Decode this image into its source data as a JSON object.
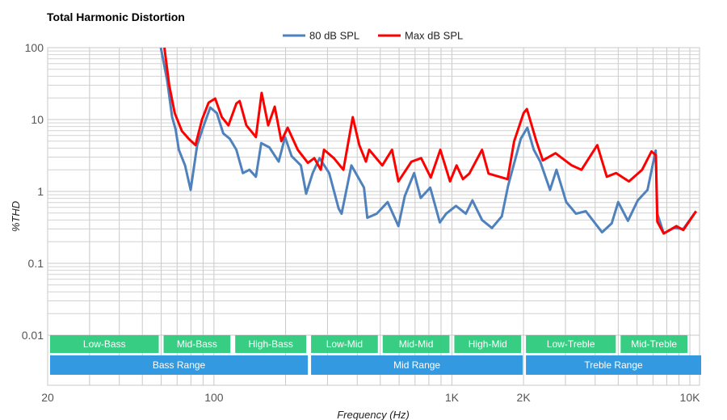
{
  "chart_data": {
    "type": "line",
    "title": "Total Harmonic Distortion",
    "xlabel": "Frequency (Hz)",
    "ylabel": "%THD",
    "xscale": "log",
    "yscale": "log",
    "xlim": [
      20,
      11000
    ],
    "ylim": [
      0.002,
      100
    ],
    "grid": true,
    "legend": "top-center",
    "x_ticks": [
      {
        "value": 20,
        "label": "20"
      },
      {
        "value": 100,
        "label": "100"
      },
      {
        "value": 1000,
        "label": "1K"
      },
      {
        "value": 2000,
        "label": "2K"
      },
      {
        "value": 10000,
        "label": "10K"
      }
    ],
    "y_ticks": [
      {
        "value": 100,
        "label": "100"
      },
      {
        "value": 10,
        "label": "10"
      },
      {
        "value": 1,
        "label": "1"
      },
      {
        "value": 0.1,
        "label": "0.1"
      },
      {
        "value": 0.01,
        "label": "0.01"
      }
    ],
    "series": [
      {
        "name": "80 dB SPL",
        "color": "#4f81bd",
        "points": [
          [
            59.8,
            100
          ],
          [
            63.6,
            34.6
          ],
          [
            66.7,
            10.8
          ],
          [
            69,
            7.3
          ],
          [
            71.2,
            3.8
          ],
          [
            75.6,
            2.3
          ],
          [
            79.8,
            1.05
          ],
          [
            85,
            4.4
          ],
          [
            90.6,
            8.3
          ],
          [
            96.5,
            14.7
          ],
          [
            102.8,
            12.3
          ],
          [
            109.4,
            6.4
          ],
          [
            116.6,
            5.4
          ],
          [
            124.2,
            3.8
          ],
          [
            132.3,
            1.8
          ],
          [
            141,
            2.0
          ],
          [
            150,
            1.6
          ],
          [
            158,
            4.7
          ],
          [
            171,
            4.1
          ],
          [
            187,
            2.6
          ],
          [
            199,
            5.7
          ],
          [
            212,
            3.1
          ],
          [
            232,
            2.3
          ],
          [
            244,
            0.93
          ],
          [
            260,
            1.8
          ],
          [
            278,
            2.9
          ],
          [
            305,
            1.8
          ],
          [
            334,
            0.58
          ],
          [
            344,
            0.49
          ],
          [
            378,
            2.3
          ],
          [
            427,
            1.13
          ],
          [
            441,
            0.43
          ],
          [
            483,
            0.49
          ],
          [
            537,
            0.71
          ],
          [
            596,
            0.33
          ],
          [
            634,
            0.86
          ],
          [
            694,
            1.8
          ],
          [
            739,
            0.81
          ],
          [
            811,
            1.13
          ],
          [
            890,
            0.37
          ],
          [
            946,
            0.49
          ],
          [
            1040,
            0.63
          ],
          [
            1144,
            0.49
          ],
          [
            1219,
            0.75
          ],
          [
            1339,
            0.4
          ],
          [
            1473,
            0.31
          ],
          [
            1620,
            0.45
          ],
          [
            1723,
            1.2
          ],
          [
            1948,
            5.4
          ],
          [
            2074,
            7.7
          ],
          [
            2208,
            3.8
          ],
          [
            2351,
            2.6
          ],
          [
            2584,
            1.05
          ],
          [
            2752,
            2.0
          ],
          [
            3024,
            0.71
          ],
          [
            3324,
            0.49
          ],
          [
            3655,
            0.53
          ],
          [
            4143,
            0.31
          ],
          [
            4274,
            0.27
          ],
          [
            4697,
            0.36
          ],
          [
            5000,
            0.71
          ],
          [
            5493,
            0.39
          ],
          [
            6038,
            0.75
          ],
          [
            6638,
            1.05
          ],
          [
            7186,
            3.7
          ],
          [
            7300,
            0.49
          ],
          [
            7770,
            0.26
          ],
          [
            8540,
            0.31
          ],
          [
            9385,
            0.3
          ],
          [
            10620,
            0.53
          ]
        ]
      },
      {
        "name": "Max dB SPL",
        "color": "#ff0000",
        "points": [
          [
            61.9,
            100
          ],
          [
            64.8,
            30.4
          ],
          [
            68.4,
            12.3
          ],
          [
            73.3,
            6.9
          ],
          [
            78.3,
            5.4
          ],
          [
            83.6,
            4.4
          ],
          [
            89.1,
            10
          ],
          [
            95,
            17.2
          ],
          [
            101.2,
            19.6
          ],
          [
            107.9,
            10.8
          ],
          [
            115,
            8.3
          ],
          [
            124.2,
            16.7
          ],
          [
            128.2,
            18.1
          ],
          [
            136.8,
            8.3
          ],
          [
            150,
            5.7
          ],
          [
            158.6,
            23.5
          ],
          [
            169,
            8.3
          ],
          [
            180,
            15.1
          ],
          [
            192,
            5.0
          ],
          [
            204,
            7.7
          ],
          [
            225,
            3.8
          ],
          [
            248,
            2.5
          ],
          [
            264,
            2.9
          ],
          [
            281,
            2.0
          ],
          [
            290,
            3.8
          ],
          [
            319,
            2.9
          ],
          [
            350,
            2.0
          ],
          [
            383,
            10.8
          ],
          [
            408,
            4.4
          ],
          [
            435,
            2.6
          ],
          [
            449,
            3.8
          ],
          [
            510,
            2.3
          ],
          [
            560,
            3.8
          ],
          [
            596,
            1.38
          ],
          [
            676,
            2.6
          ],
          [
            743,
            2.9
          ],
          [
            815,
            1.56
          ],
          [
            894,
            3.8
          ],
          [
            982,
            1.38
          ],
          [
            1046,
            2.3
          ],
          [
            1113,
            1.48
          ],
          [
            1184,
            1.77
          ],
          [
            1338,
            3.8
          ],
          [
            1425,
            1.77
          ],
          [
            1714,
            1.48
          ],
          [
            1826,
            5.0
          ],
          [
            2002,
            12.3
          ],
          [
            2066,
            14.0
          ],
          [
            2264,
            5.0
          ],
          [
            2411,
            2.7
          ],
          [
            2726,
            3.4
          ],
          [
            2903,
            2.9
          ],
          [
            3190,
            2.3
          ],
          [
            3505,
            2.0
          ],
          [
            4083,
            4.4
          ],
          [
            4476,
            1.6
          ],
          [
            4900,
            1.8
          ],
          [
            5546,
            1.38
          ],
          [
            6300,
            2.0
          ],
          [
            6900,
            3.6
          ],
          [
            7200,
            3.2
          ],
          [
            7300,
            0.38
          ],
          [
            7770,
            0.26
          ],
          [
            8780,
            0.33
          ],
          [
            9385,
            0.29
          ],
          [
            10620,
            0.53
          ]
        ]
      }
    ],
    "bands": {
      "color": "#33cc7f",
      "items": [
        {
          "label": "Low-Bass",
          "from": 20,
          "to": 60
        },
        {
          "label": "Mid-Bass",
          "from": 60,
          "to": 120
        },
        {
          "label": "High-Bass",
          "from": 120,
          "to": 250
        },
        {
          "label": "Low-Mid",
          "from": 250,
          "to": 500
        },
        {
          "label": "Mid-Mid",
          "from": 500,
          "to": 1000
        },
        {
          "label": "High-Mid",
          "from": 1000,
          "to": 2000
        },
        {
          "label": "Low-Treble",
          "from": 2000,
          "to": 5000
        },
        {
          "label": "Mid-Treble",
          "from": 5000,
          "to": 10000
        }
      ]
    },
    "ranges": {
      "color": "#3399e0",
      "items": [
        {
          "label": "Bass Range",
          "from": 20,
          "to": 250
        },
        {
          "label": "Mid Range",
          "from": 250,
          "to": 2000
        },
        {
          "label": "Treble Range",
          "from": 2000,
          "to": 11000
        }
      ]
    }
  }
}
